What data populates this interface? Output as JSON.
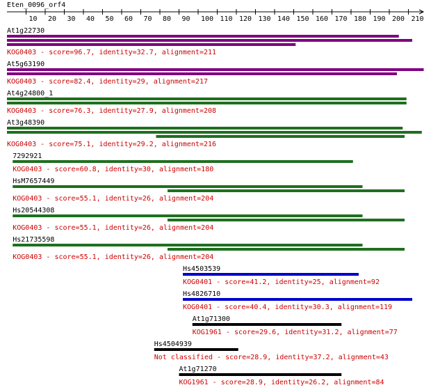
{
  "ruler": {
    "title": "Eten_0096_orf4",
    "range": [
      0,
      218
    ],
    "ticks": [
      10,
      20,
      30,
      40,
      50,
      60,
      70,
      80,
      90,
      100,
      110,
      120,
      130,
      140,
      150,
      160,
      170,
      180,
      190,
      200,
      210
    ]
  },
  "hits": [
    {
      "name": "At1g22730",
      "color": "#800080",
      "label": "KOG0403 - score=96.7, identity=32.7, alignment=211",
      "segments": [
        [
          0,
          205
        ],
        [
          0,
          212
        ],
        [
          0,
          151
        ]
      ]
    },
    {
      "name": "At5g63190",
      "color": "#800080",
      "label": "KOG0403 - score=82.4, identity=29, alignment=217",
      "segments": [
        [
          0,
          218
        ],
        [
          0,
          204
        ]
      ]
    },
    {
      "name": "At4g24800_1",
      "color": "#1f6f1f",
      "label": "KOG0403 - score=76.3, identity=27.9, alignment=208",
      "segments": [
        [
          0,
          209
        ],
        [
          0,
          209
        ]
      ]
    },
    {
      "name": "At3g48390",
      "color": "#1f6f1f",
      "label": "KOG0403 - score=75.1, identity=29.2, alignment=216",
      "segments": [
        [
          0,
          207
        ],
        [
          0,
          217
        ],
        [
          78,
          208
        ]
      ]
    },
    {
      "name": "7292921",
      "color": "#1f6f1f",
      "label": "KOG0403 - score=60.8, identity=30, alignment=180",
      "segments": [
        [
          3,
          181
        ]
      ]
    },
    {
      "name": "HsM7657449",
      "color": "#1f6f1f",
      "label": "KOG0403 - score=55.1, identity=26, alignment=204",
      "segments": [
        [
          3,
          186
        ],
        [
          84,
          208
        ]
      ]
    },
    {
      "name": "Hs20544308",
      "color": "#1f6f1f",
      "label": "KOG0403 - score=55.1, identity=26, alignment=204",
      "segments": [
        [
          3,
          186
        ],
        [
          84,
          208
        ]
      ]
    },
    {
      "name": "Hs21735598",
      "color": "#1f6f1f",
      "label": "KOG0403 - score=55.1, identity=26, alignment=204",
      "segments": [
        [
          3,
          186
        ],
        [
          84,
          208
        ]
      ]
    },
    {
      "name": "Hs4503539",
      "color": "#0000cc",
      "label": "KOG0401 - score=41.2, identity=25, alignment=92",
      "segments": [
        [
          92,
          184
        ]
      ]
    },
    {
      "name": "Hs4826710",
      "color": "#0000cc",
      "label": "KOG0401 - score=40.4, identity=30.3, alignment=119",
      "segments": [
        [
          92,
          212
        ]
      ]
    },
    {
      "name": "At1g71300",
      "color": "#000000",
      "label": "KOG1961 - score=29.6, identity=31.2, alignment=77",
      "segments": [
        [
          97,
          175
        ]
      ]
    },
    {
      "name": "Hs4504939",
      "color": "#000000",
      "label": "Not classified - score=28.9, identity=37.2, alignment=43",
      "segments": [
        [
          77,
          121
        ]
      ]
    },
    {
      "name": "At1g71270",
      "color": "#000000",
      "label": "KOG1961 - score=28.9, identity=26.2, alignment=84",
      "segments": [
        [
          90,
          175
        ]
      ]
    }
  ]
}
